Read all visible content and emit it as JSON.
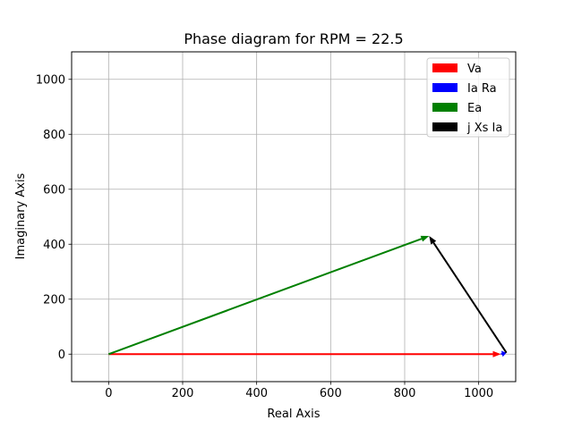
{
  "chart_data": {
    "type": "vector",
    "title": "Phase diagram for RPM = 22.5",
    "xlabel": "Real Axis",
    "ylabel": "Imaginary Axis",
    "xlim": [
      -100,
      1100
    ],
    "ylim": [
      -100,
      1100
    ],
    "xticks": [
      0,
      200,
      400,
      600,
      800,
      1000
    ],
    "yticks": [
      0,
      200,
      400,
      600,
      800,
      1000
    ],
    "xtick_labels": [
      "0",
      "200",
      "400",
      "600",
      "800",
      "1000"
    ],
    "ytick_labels": [
      "0",
      "200",
      "400",
      "600",
      "800",
      "1000"
    ],
    "grid": true,
    "legend_position": "upper-right",
    "series": [
      {
        "name": "Va",
        "color": "#ff0000",
        "from": [
          0,
          0
        ],
        "to": [
          1060,
          0
        ]
      },
      {
        "name": "Ia Ra",
        "color": "#0000ff",
        "from": [
          1060,
          0
        ],
        "to": [
          1075,
          5
        ]
      },
      {
        "name": "Ea",
        "color": "#008000",
        "from": [
          0,
          0
        ],
        "to": [
          866,
          430
        ]
      },
      {
        "name": "j Xs Ia",
        "color": "#000000",
        "from": [
          1075,
          5
        ],
        "to": [
          866,
          430
        ]
      }
    ]
  }
}
